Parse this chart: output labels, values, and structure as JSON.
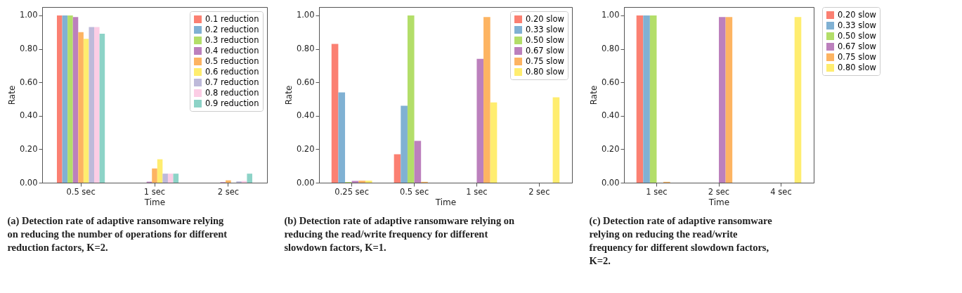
{
  "chart_data": [
    {
      "type": "bar",
      "categories": [
        "0.5 sec",
        "1 sec",
        "2 sec"
      ],
      "xlabel": "Time",
      "ylabel": "Rate",
      "ylim": [
        0,
        1.05
      ],
      "yticks": [
        {
          "value": 0,
          "label": "0.00"
        },
        {
          "value": 0.2,
          "label": "0.20"
        },
        {
          "value": 0.4,
          "label": "0.40"
        },
        {
          "value": 0.6,
          "label": "0.60"
        },
        {
          "value": 0.8,
          "label": "0.80"
        },
        {
          "value": 1,
          "label": "1.00"
        }
      ],
      "legend": "top right",
      "grid": false,
      "annotations": [
        "(a) Detection rate of adaptive ransomware relying on reducing the number of operations for different reduction factors, K=2."
      ],
      "series": [
        {
          "name": "0.1 reduction",
          "color": "#fb8072",
          "values": [
            1.0,
            0,
            0
          ]
        },
        {
          "name": "0.2 reduction",
          "color": "#80b1d3",
          "values": [
            1.0,
            0,
            0
          ]
        },
        {
          "name": "0.3 reduction",
          "color": "#b3de69",
          "values": [
            1.0,
            0,
            0
          ]
        },
        {
          "name": "0.4 reduction",
          "color": "#bc80bd",
          "values": [
            0.99,
            0.006,
            0.003
          ]
        },
        {
          "name": "0.5 reduction",
          "color": "#fdb462",
          "values": [
            0.9,
            0.085,
            0.014
          ]
        },
        {
          "name": "0.6 reduction",
          "color": "#ffed6f",
          "values": [
            0.86,
            0.14,
            0
          ]
        },
        {
          "name": "0.7 reduction",
          "color": "#bebada",
          "values": [
            0.93,
            0.054,
            0.008
          ]
        },
        {
          "name": "0.8 reduction",
          "color": "#fccde5",
          "values": [
            0.93,
            0.054,
            0.01
          ]
        },
        {
          "name": "0.9 reduction",
          "color": "#8dd3c7",
          "values": [
            0.89,
            0.054,
            0.054
          ]
        }
      ]
    },
    {
      "type": "bar",
      "categories": [
        "0.25 sec",
        "0.5 sec",
        "1 sec",
        "2 sec"
      ],
      "xlabel": "Time",
      "ylabel": "Rate",
      "ylim": [
        0,
        1.05
      ],
      "yticks": [
        {
          "value": 0,
          "label": "0.00"
        },
        {
          "value": 0.2,
          "label": "0.20"
        },
        {
          "value": 0.4,
          "label": "0.40"
        },
        {
          "value": 0.6,
          "label": "0.60"
        },
        {
          "value": 0.8,
          "label": "0.80"
        },
        {
          "value": 1,
          "label": "1.00"
        }
      ],
      "legend": "top right",
      "grid": false,
      "annotations": [
        "(b) Detection rate of adaptive ransomware relying on reducing the read/write frequency for different slowdown factors, K=1."
      ],
      "series": [
        {
          "name": "0.20 slow",
          "color": "#fb8072",
          "values": [
            0.83,
            0.17,
            0,
            0
          ]
        },
        {
          "name": "0.33 slow",
          "color": "#80b1d3",
          "values": [
            0.54,
            0.46,
            0,
            0
          ]
        },
        {
          "name": "0.50 slow",
          "color": "#b3de69",
          "values": [
            0.004,
            1.0,
            0,
            0
          ]
        },
        {
          "name": "0.67 slow",
          "color": "#bc80bd",
          "values": [
            0.01,
            0.25,
            0.74,
            0
          ]
        },
        {
          "name": "0.75 slow",
          "color": "#fdb462",
          "values": [
            0.012,
            0.005,
            0.99,
            0
          ]
        },
        {
          "name": "0.80 slow",
          "color": "#ffed6f",
          "values": [
            0.012,
            0,
            0.48,
            0.51
          ]
        }
      ]
    },
    {
      "type": "bar",
      "categories": [
        "1 sec",
        "2 sec",
        "4 sec"
      ],
      "xlabel": "Time",
      "ylabel": "Rate",
      "ylim": [
        0,
        1.05
      ],
      "yticks": [
        {
          "value": 0,
          "label": "0.00"
        },
        {
          "value": 0.2,
          "label": "0.20"
        },
        {
          "value": 0.4,
          "label": "0.40"
        },
        {
          "value": 0.6,
          "label": "0.60"
        },
        {
          "value": 0.8,
          "label": "0.80"
        },
        {
          "value": 1,
          "label": "1.00"
        }
      ],
      "legend": "right",
      "grid": false,
      "annotations": [
        "(c) Detection rate of adaptive ransomware relying on reducing the read/write frequency for different slowdown factors, K=2."
      ],
      "series": [
        {
          "name": "0.20 slow",
          "color": "#fb8072",
          "values": [
            1.0,
            0,
            0
          ]
        },
        {
          "name": "0.33 slow",
          "color": "#80b1d3",
          "values": [
            1.0,
            0,
            0
          ]
        },
        {
          "name": "0.50 slow",
          "color": "#b3de69",
          "values": [
            1.0,
            0,
            0
          ]
        },
        {
          "name": "0.67 slow",
          "color": "#bc80bd",
          "values": [
            0,
            0.99,
            0
          ]
        },
        {
          "name": "0.75 slow",
          "color": "#fdb462",
          "values": [
            0.005,
            0.99,
            0
          ]
        },
        {
          "name": "0.80 slow",
          "color": "#ffed6f",
          "values": [
            0,
            0,
            0.99
          ]
        }
      ]
    }
  ]
}
